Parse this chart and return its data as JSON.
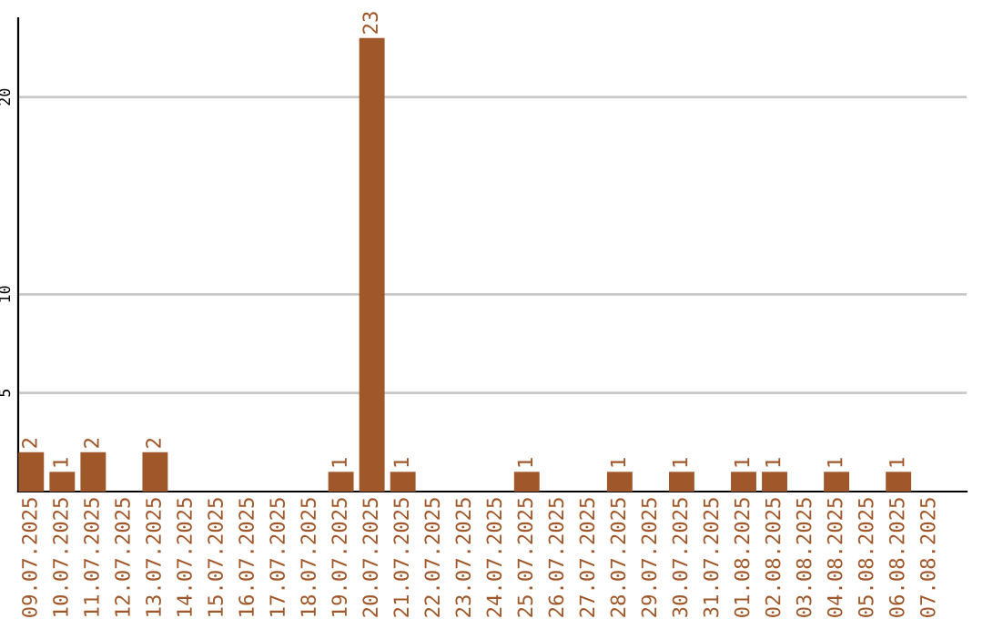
{
  "chart_data": {
    "type": "bar",
    "categories": [
      "09.07.2025",
      "10.07.2025",
      "11.07.2025",
      "12.07.2025",
      "13.07.2025",
      "14.07.2025",
      "15.07.2025",
      "16.07.2025",
      "17.07.2025",
      "18.07.2025",
      "19.07.2025",
      "20.07.2025",
      "21.07.2025",
      "22.07.2025",
      "23.07.2025",
      "24.07.2025",
      "25.07.2025",
      "26.07.2025",
      "27.07.2025",
      "28.07.2025",
      "29.07.2025",
      "30.07.2025",
      "31.07.2025",
      "01.08.2025",
      "02.08.2025",
      "03.08.2025",
      "04.08.2025",
      "05.08.2025",
      "06.08.2025",
      "07.08.2025"
    ],
    "values": [
      2,
      1,
      2,
      0,
      2,
      0,
      0,
      0,
      0,
      0,
      1,
      23,
      1,
      0,
      0,
      0,
      1,
      0,
      0,
      1,
      0,
      1,
      0,
      1,
      1,
      0,
      1,
      0,
      1,
      0
    ],
    "value_labels": [
      "2",
      "1",
      "2",
      null,
      "2",
      null,
      null,
      null,
      null,
      null,
      "1",
      "23",
      "1",
      null,
      null,
      null,
      "1",
      null,
      null,
      "1",
      null,
      "1",
      null,
      "1",
      "1",
      null,
      "1",
      null,
      "1",
      null
    ],
    "color": "#a0582a",
    "ylim": [
      0,
      24
    ],
    "yticks": [
      5,
      10,
      20
    ],
    "grid": "y"
  }
}
